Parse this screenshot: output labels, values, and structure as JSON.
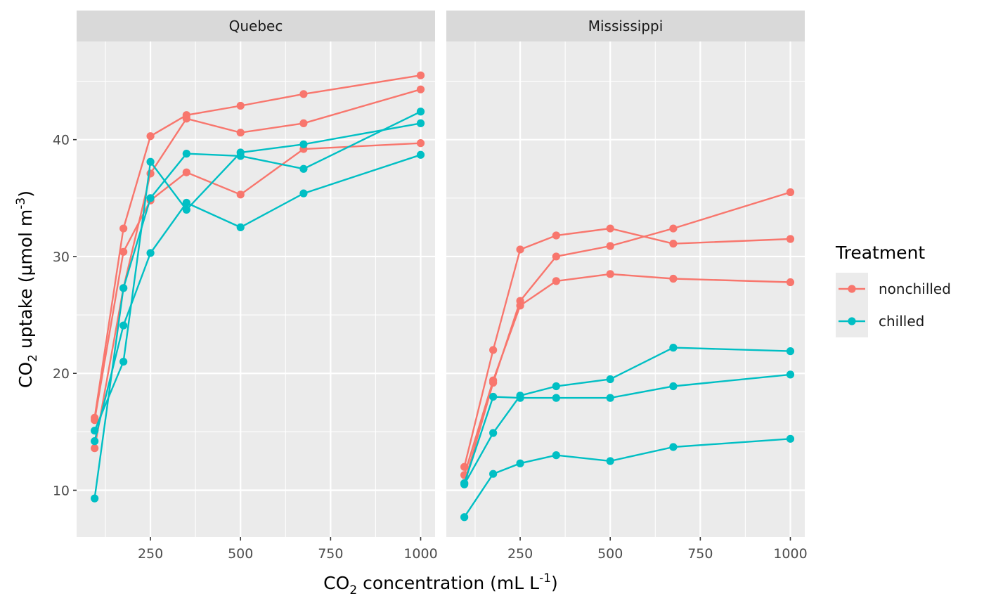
{
  "chart_data": {
    "type": "line",
    "facets": [
      "Quebec",
      "Mississippi"
    ],
    "xlabel": {
      "pre": "CO",
      "sub": "2",
      "post": " concentration (mL L",
      "sup": "-1",
      "end": ")"
    },
    "ylabel": {
      "pre": "CO",
      "sub": "2",
      "post": " uptake (µmol m",
      "sup": "-3",
      "end": ")"
    },
    "xlim": [
      45,
      1040
    ],
    "ylim": [
      6.0,
      48.4
    ],
    "x_ticks": [
      250,
      500,
      750,
      1000
    ],
    "y_ticks": [
      10,
      20,
      30,
      40
    ],
    "legend": {
      "title": "Treatment",
      "position": "right",
      "entries": [
        {
          "label": "nonchilled",
          "color": "#F8766D"
        },
        {
          "label": "chilled",
          "color": "#00BFC4"
        }
      ]
    },
    "x": [
      95,
      175,
      250,
      350,
      500,
      675,
      1000
    ],
    "series": [
      {
        "facet": "Quebec",
        "treatment": "nonchilled",
        "values": [
          16.0,
          30.4,
          34.8,
          37.2,
          35.3,
          39.2,
          39.7
        ]
      },
      {
        "facet": "Quebec",
        "treatment": "nonchilled",
        "values": [
          13.6,
          27.3,
          37.1,
          41.8,
          40.6,
          41.4,
          44.3
        ]
      },
      {
        "facet": "Quebec",
        "treatment": "nonchilled",
        "values": [
          16.2,
          32.4,
          40.3,
          42.1,
          42.9,
          43.9,
          45.5
        ]
      },
      {
        "facet": "Quebec",
        "treatment": "chilled",
        "values": [
          14.2,
          24.1,
          30.3,
          34.6,
          32.5,
          35.4,
          38.7
        ]
      },
      {
        "facet": "Quebec",
        "treatment": "chilled",
        "values": [
          9.3,
          27.3,
          35.0,
          38.8,
          38.6,
          37.5,
          42.4
        ]
      },
      {
        "facet": "Quebec",
        "treatment": "chilled",
        "values": [
          15.1,
          21.0,
          38.1,
          34.0,
          38.9,
          39.6,
          41.4
        ]
      },
      {
        "facet": "Mississippi",
        "treatment": "nonchilled",
        "values": [
          10.6,
          19.2,
          26.2,
          30.0,
          30.9,
          32.4,
          35.5
        ]
      },
      {
        "facet": "Mississippi",
        "treatment": "nonchilled",
        "values": [
          12.0,
          22.0,
          30.6,
          31.8,
          32.4,
          31.1,
          31.5
        ]
      },
      {
        "facet": "Mississippi",
        "treatment": "nonchilled",
        "values": [
          11.3,
          19.4,
          25.8,
          27.9,
          28.5,
          28.1,
          27.8
        ]
      },
      {
        "facet": "Mississippi",
        "treatment": "chilled",
        "values": [
          10.5,
          14.9,
          18.1,
          18.9,
          19.5,
          22.2,
          21.9
        ]
      },
      {
        "facet": "Mississippi",
        "treatment": "chilled",
        "values": [
          7.7,
          11.4,
          12.3,
          13.0,
          12.5,
          13.7,
          14.4
        ]
      },
      {
        "facet": "Mississippi",
        "treatment": "chilled",
        "values": [
          10.6,
          18.0,
          17.9,
          17.9,
          17.9,
          18.9,
          19.9
        ]
      }
    ],
    "grid": true
  }
}
